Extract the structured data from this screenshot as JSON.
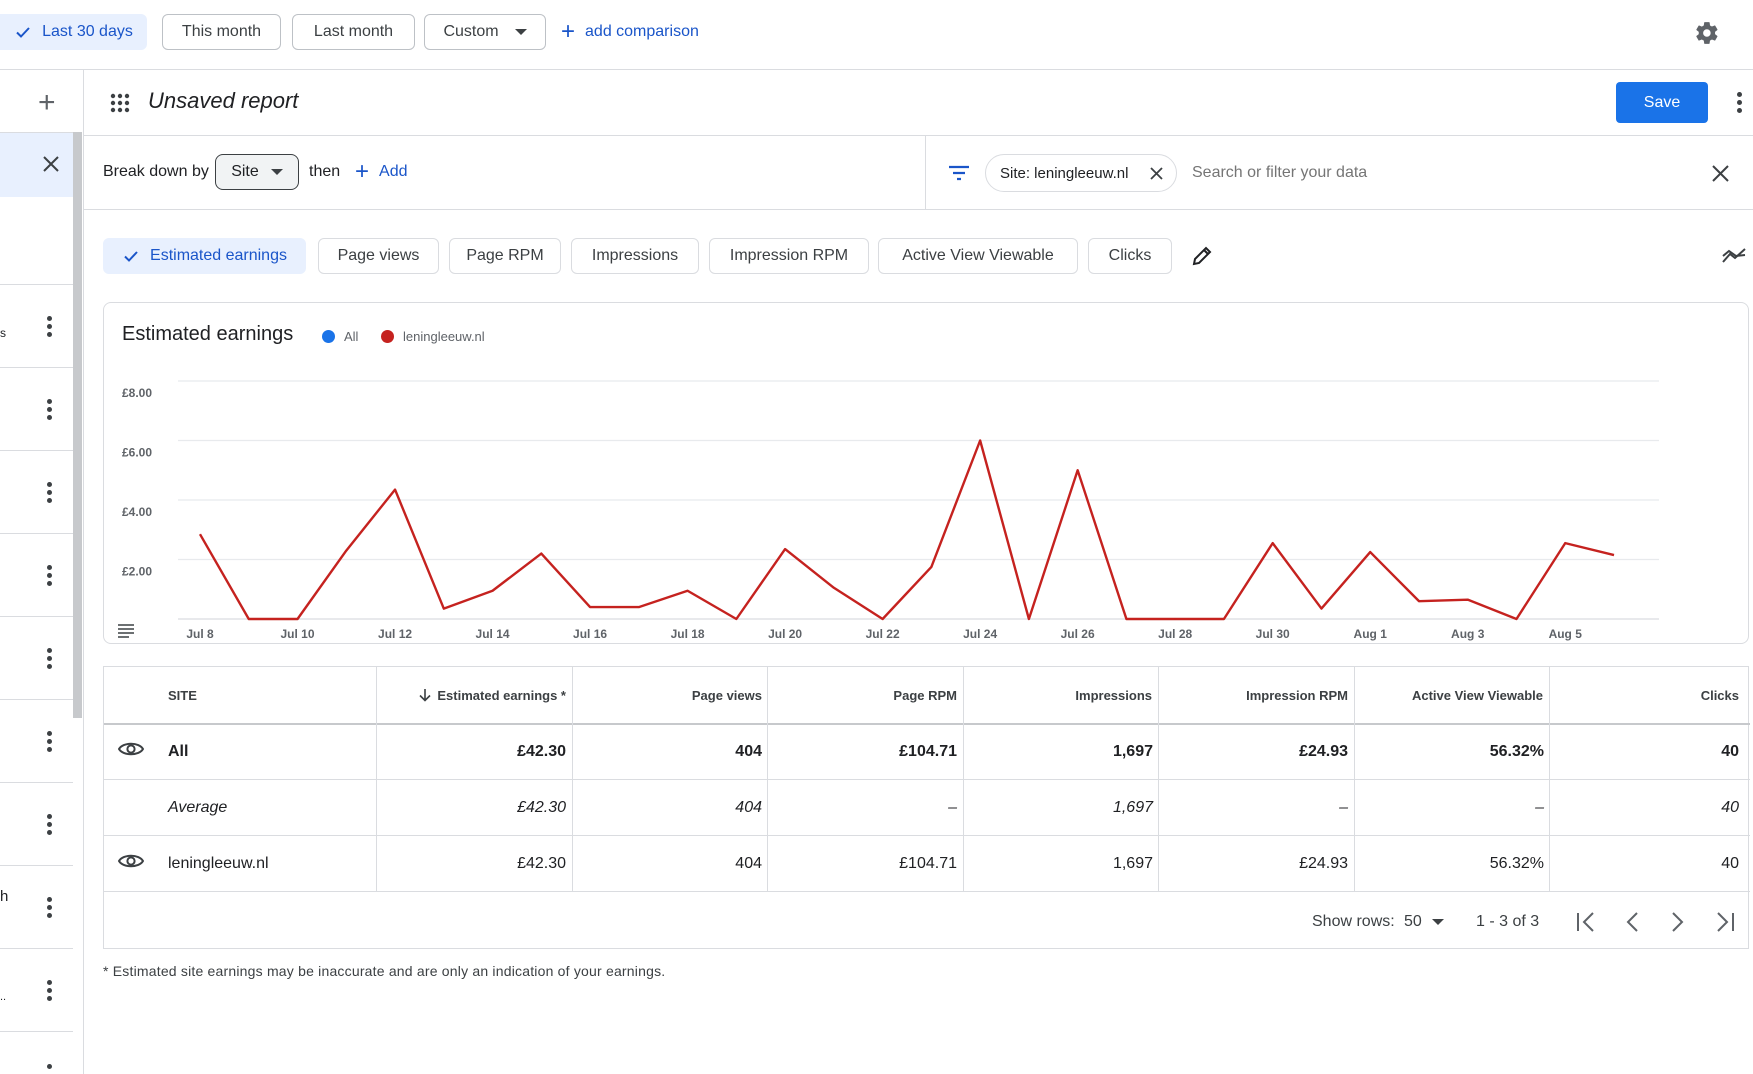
{
  "date_filters": {
    "last_30_days": "Last 30 days",
    "this_month": "This month",
    "last_month": "Last month",
    "custom": "Custom",
    "add_comparison": "add comparison"
  },
  "report": {
    "title": "Unsaved report",
    "save_label": "Save"
  },
  "breakdown": {
    "label": "Break down by",
    "value": "Site",
    "then": "then",
    "add": "Add"
  },
  "filter": {
    "chip": "Site: leningleeuw.nl",
    "placeholder": "Search or filter your data"
  },
  "metrics": [
    "Estimated earnings",
    "Page views",
    "Page RPM",
    "Impressions",
    "Impression RPM",
    "Active View Viewable",
    "Clicks"
  ],
  "left_rail": {
    "fragments": [
      "s",
      "h",
      ".."
    ]
  },
  "chart": {
    "title": "Estimated earnings",
    "legend": [
      {
        "label": "All",
        "color": "#1a73e8"
      },
      {
        "label": "leningleeuw.nl",
        "color": "#c5221f"
      }
    ]
  },
  "chart_data": {
    "type": "line",
    "title": "Estimated earnings",
    "xlabel": "",
    "ylabel": "",
    "x": [
      "Jul 8",
      "Jul 9",
      "Jul 10",
      "Jul 11",
      "Jul 12",
      "Jul 13",
      "Jul 14",
      "Jul 15",
      "Jul 16",
      "Jul 17",
      "Jul 18",
      "Jul 19",
      "Jul 20",
      "Jul 21",
      "Jul 22",
      "Jul 23",
      "Jul 24",
      "Jul 25",
      "Jul 26",
      "Jul 27",
      "Jul 28",
      "Jul 29",
      "Jul 30",
      "Jul 31",
      "Aug 1",
      "Aug 2",
      "Aug 3",
      "Aug 4",
      "Aug 5",
      "Aug 6"
    ],
    "x_tick_labels": [
      "Jul 8",
      "Jul 10",
      "Jul 12",
      "Jul 14",
      "Jul 16",
      "Jul 18",
      "Jul 20",
      "Jul 22",
      "Jul 24",
      "Jul 26",
      "Jul 28",
      "Jul 30",
      "Aug 1",
      "Aug 3",
      "Aug 5"
    ],
    "y_tick_labels": [
      "£2.00",
      "£4.00",
      "£6.00",
      "£8.00"
    ],
    "ylim": [
      0,
      8
    ],
    "series": [
      {
        "name": "leningleeuw.nl",
        "color": "#c5221f",
        "values": [
          2.85,
          0,
          0,
          2.3,
          4.35,
          0.35,
          0.95,
          2.2,
          0.4,
          0.4,
          0.95,
          0,
          2.35,
          1.05,
          0,
          1.75,
          6.0,
          0,
          5.0,
          0,
          0,
          0,
          2.55,
          0.35,
          2.25,
          0.6,
          0.65,
          0,
          2.55,
          2.15
        ]
      }
    ],
    "grid": true
  },
  "table": {
    "headers": [
      "SITE",
      "Estimated earnings *",
      "Page views",
      "Page RPM",
      "Impressions",
      "Impression RPM",
      "Active View Viewable",
      "Clicks"
    ],
    "rows": [
      [
        "All",
        "£42.30",
        "404",
        "£104.71",
        "1,697",
        "£24.93",
        "56.32%",
        "40"
      ],
      [
        "Average",
        "£42.30",
        "404",
        "–",
        "1,697",
        "–",
        "–",
        "40"
      ],
      [
        "leningleeuw.nl",
        "£42.30",
        "404",
        "£104.71",
        "1,697",
        "£24.93",
        "56.32%",
        "40"
      ]
    ],
    "pagination": {
      "show_rows_label": "Show rows:",
      "rows_value": "50",
      "range": "1 - 3 of 3"
    }
  },
  "footnote": "* Estimated site earnings may be inaccurate and are only an indication of your earnings."
}
